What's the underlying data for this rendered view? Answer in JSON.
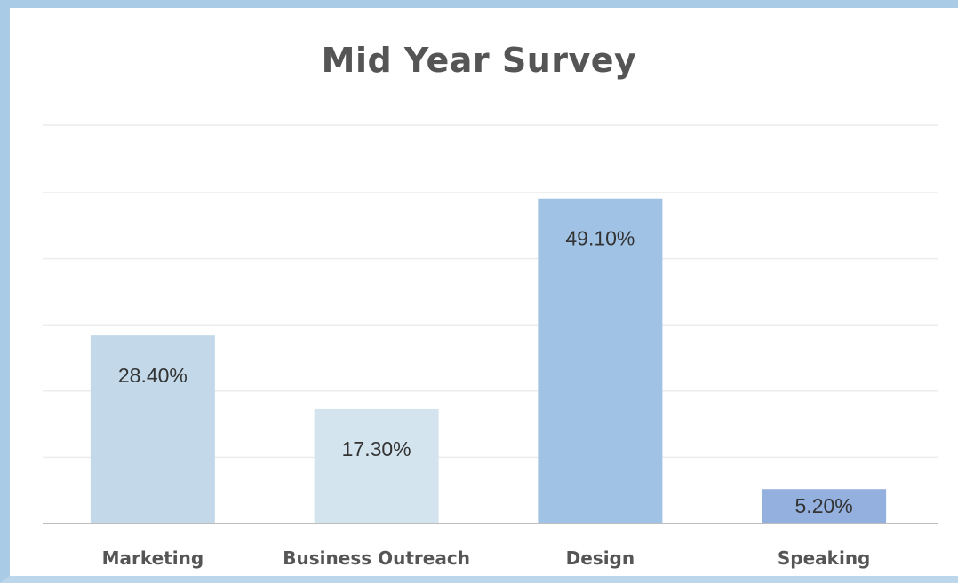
{
  "chart_data": {
    "type": "bar",
    "title": "Mid Year Survey",
    "xlabel": "",
    "ylabel": "",
    "categories": [
      "Marketing",
      "Business Outreach",
      "Design",
      "Speaking"
    ],
    "values": [
      28.4,
      17.3,
      49.1,
      5.2
    ],
    "value_labels": [
      "28.40%",
      "17.30%",
      "49.10%",
      "5.20%"
    ],
    "ylim": [
      0,
      60
    ],
    "gridlines": [
      10,
      20,
      30,
      40,
      50
    ],
    "grid": true,
    "legend": "none",
    "colors": [
      "#c3d9ea",
      "#d3e4ee",
      "#a0c2e4",
      "#94b0de"
    ]
  }
}
